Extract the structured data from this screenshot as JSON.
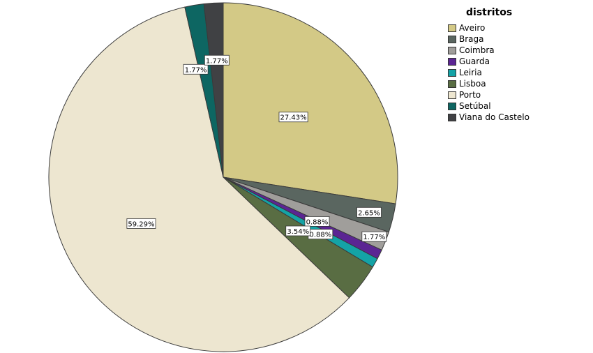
{
  "chart_data": {
    "type": "pie",
    "legend_title": "distritos",
    "legend_position": "top-right",
    "start_angle": "12 o'clock",
    "direction": "clockwise",
    "slices": [
      {
        "name": "Aveiro",
        "value": 27.43,
        "label": "27.43%",
        "color": "#d3c986"
      },
      {
        "name": "Braga",
        "value": 2.65,
        "label": "2.65%",
        "color": "#5a6660"
      },
      {
        "name": "Coimbra",
        "value": 1.77,
        "label": "1.77%",
        "color": "#a09e9b"
      },
      {
        "name": "Guarda",
        "value": 0.88,
        "label": "0.88%",
        "color": "#5b2593"
      },
      {
        "name": "Leiria",
        "value": 0.88,
        "label": "0.88%",
        "color": "#14a3a6"
      },
      {
        "name": "Lisboa",
        "value": 3.54,
        "label": "3.54%",
        "color": "#596d43"
      },
      {
        "name": "Porto",
        "value": 59.29,
        "label": "59.29%",
        "color": "#ede6d0"
      },
      {
        "name": "Setúbal",
        "value": 1.77,
        "label": "1.77%",
        "color": "#0d6662"
      },
      {
        "name": "Viana do Castelo",
        "value": 1.77,
        "label": "1.77%",
        "color": "#404144"
      }
    ]
  }
}
